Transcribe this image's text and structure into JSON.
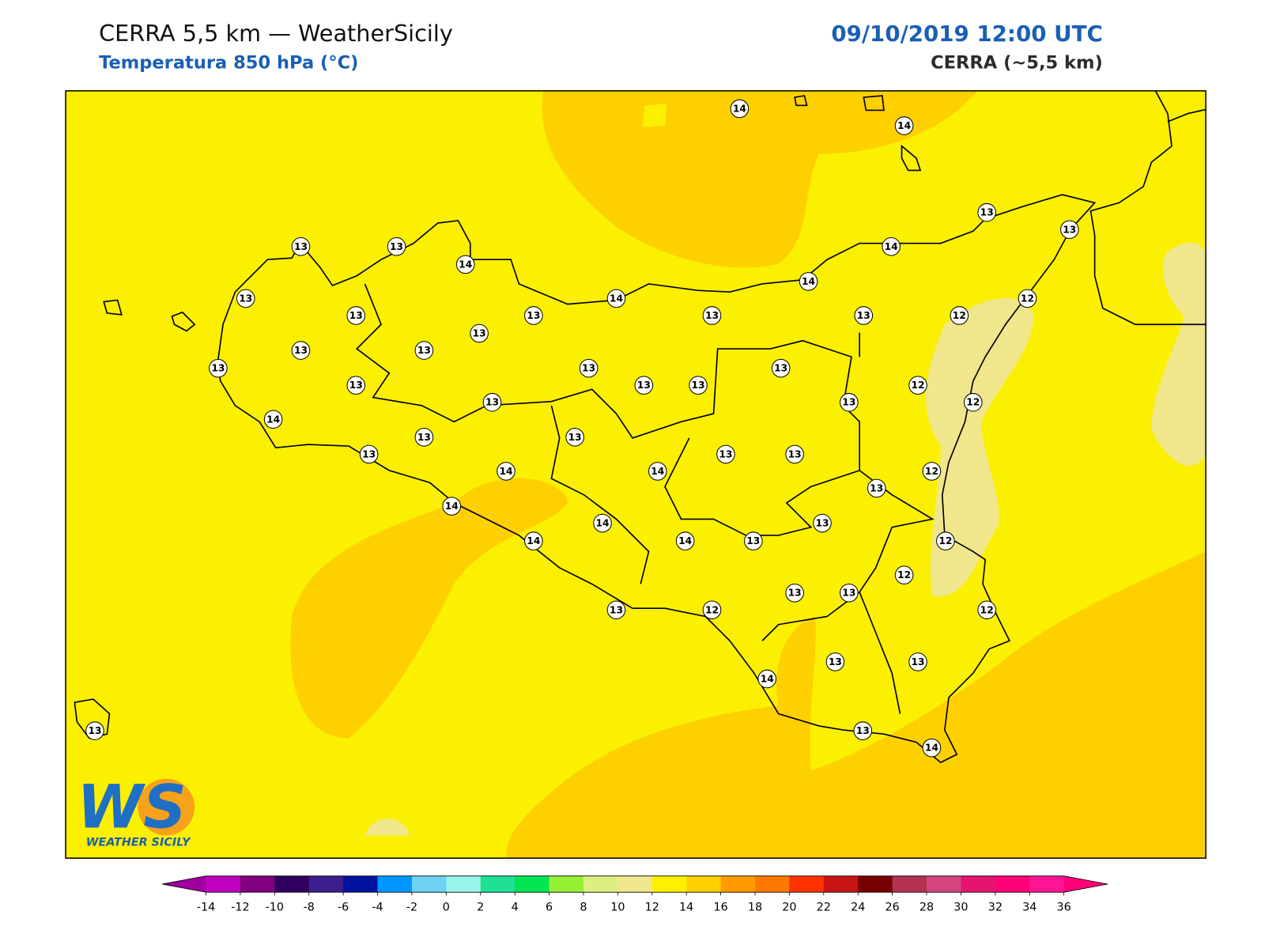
{
  "header": {
    "title": "CERRA 5,5 km — WeatherSicily",
    "subtitle": "Temperatura 850 hPa (°C)",
    "date": "09/10/2019 12:00 UTC",
    "model": "CERRA (~5,5 km)"
  },
  "logo": {
    "mark": "WS",
    "name": "WEATHER SICILY"
  },
  "stations": [
    14,
    14,
    13,
    13,
    14,
    13,
    13,
    14,
    14,
    13,
    14,
    13,
    13,
    13,
    13,
    12,
    12,
    13,
    13,
    13,
    13,
    13,
    13,
    13,
    13,
    13,
    12,
    13,
    13,
    12,
    14,
    13,
    13,
    13,
    13,
    13,
    14,
    14,
    12,
    13,
    14,
    13,
    14,
    14,
    14,
    13,
    12,
    12,
    13,
    13,
    13,
    12,
    12,
    13,
    13,
    14,
    13,
    14,
    13
  ],
  "colorbar": {
    "ticks": [
      -14,
      -12,
      -10,
      -8,
      -6,
      -4,
      -2,
      0,
      2,
      4,
      6,
      8,
      10,
      12,
      14,
      16,
      18,
      20,
      22,
      24,
      26,
      28,
      30,
      32,
      34,
      36
    ],
    "colors": [
      "#c000c0",
      "#800080",
      "#300060",
      "#3c1e8c",
      "#0014a0",
      "#0096ff",
      "#6ed2f5",
      "#96f5e6",
      "#1ee196",
      "#00e650",
      "#96f032",
      "#dcf082",
      "#f0e68c",
      "#fff000",
      "#ffd000",
      "#ff9a00",
      "#ff7800",
      "#ff3200",
      "#c81414",
      "#780000",
      "#b43250",
      "#d2467d",
      "#e6146e",
      "#ff0078",
      "#ff1493"
    ],
    "under": "#a000a0",
    "over": "#ff0078"
  }
}
